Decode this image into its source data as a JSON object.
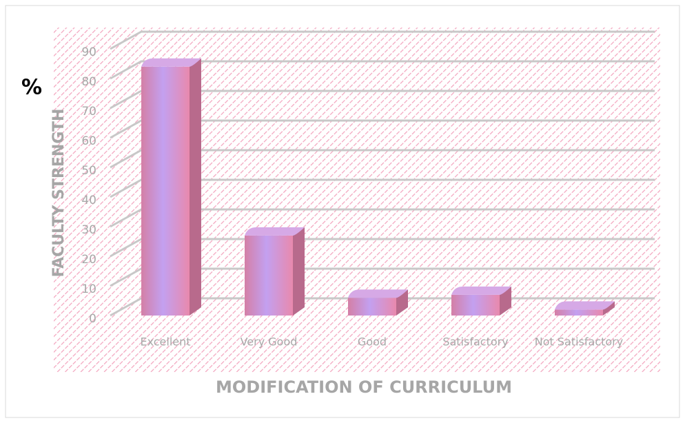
{
  "chart_data": {
    "type": "bar3d",
    "annotation": "%",
    "y_label": "FACULTY STRENGTH",
    "x_label": "MODIFICATION OF CURRICULUM",
    "categories": [
      "Excellent",
      "Very Good",
      "Good",
      "Satisfactory",
      "Not Satisfactory"
    ],
    "values": [
      84,
      27,
      6,
      7,
      2
    ],
    "color": "#c990d8",
    "ylim": [
      0,
      100
    ],
    "yticks": [
      0,
      10,
      20,
      30,
      40,
      50,
      60,
      70,
      80,
      90
    ],
    "grid": true
  }
}
